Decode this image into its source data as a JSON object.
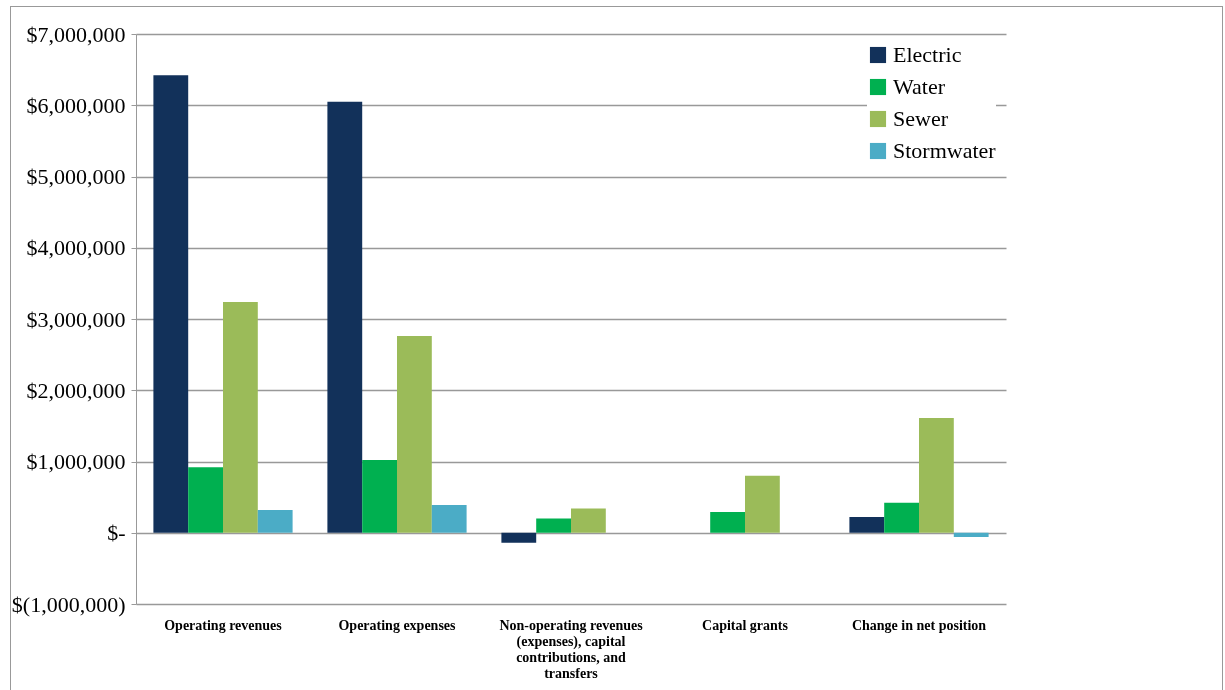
{
  "chart_data": {
    "type": "bar",
    "categories": [
      "Operating revenues",
      "Operating expenses",
      "Non-operating revenues (expenses), capital contributions, and transfers",
      "Capital grants",
      "Change in net position"
    ],
    "series": [
      {
        "name": "Electric",
        "color": "#12315a",
        "values": [
          6420000,
          6050000,
          -140000,
          null,
          220000
        ]
      },
      {
        "name": "Water",
        "color": "#00b050",
        "values": [
          920000,
          1020000,
          200000,
          290000,
          420000
        ]
      },
      {
        "name": "Sewer",
        "color": "#9bbb59",
        "values": [
          3240000,
          2760000,
          340000,
          800000,
          1610000
        ]
      },
      {
        "name": "Stormwater",
        "color": "#4bacc6",
        "values": [
          320000,
          390000,
          null,
          null,
          -60000
        ]
      }
    ],
    "ylim": [
      -1000000,
      7000000
    ],
    "yticks": [
      {
        "value": -1000000,
        "label": "$(1,000,000)"
      },
      {
        "value": 0,
        "label": "$-"
      },
      {
        "value": 1000000,
        "label": "$1,000,000"
      },
      {
        "value": 2000000,
        "label": "$2,000,000"
      },
      {
        "value": 3000000,
        "label": "$3,000,000"
      },
      {
        "value": 4000000,
        "label": "$4,000,000"
      },
      {
        "value": 5000000,
        "label": "$5,000,000"
      },
      {
        "value": 6000000,
        "label": "$6,000,000"
      },
      {
        "value": 7000000,
        "label": "$7,000,000"
      }
    ],
    "grid": "y",
    "legend": "top right"
  }
}
